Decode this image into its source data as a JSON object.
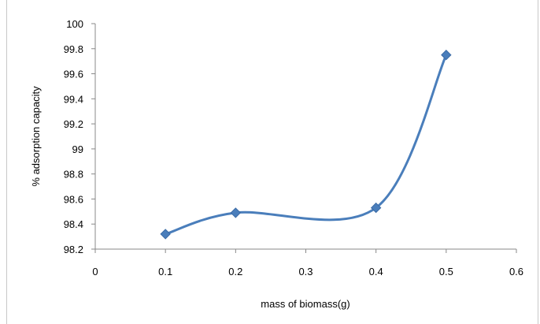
{
  "chart_data": {
    "type": "scatter",
    "xlabel": "mass of biomass(g)",
    "ylabel": "% adsorption capacity",
    "xlim": [
      0,
      0.6
    ],
    "ylim": [
      98.2,
      100
    ],
    "xticks": [
      "0",
      "0.1",
      "0.2",
      "0.3",
      "0.4",
      "0.5",
      "0.6"
    ],
    "yticks": [
      "98.2",
      "98.4",
      "98.6",
      "98.8",
      "99",
      "99.2",
      "99.4",
      "99.6",
      "99.8",
      "100"
    ],
    "grid": false,
    "legend": "none",
    "smoothed_line": true,
    "marker": "diamond",
    "series": [
      {
        "x": [
          0.1,
          0.2,
          0.4,
          0.5
        ],
        "y": [
          98.32,
          98.49,
          98.53,
          99.75
        ],
        "color": "#4a7ebb"
      }
    ]
  }
}
